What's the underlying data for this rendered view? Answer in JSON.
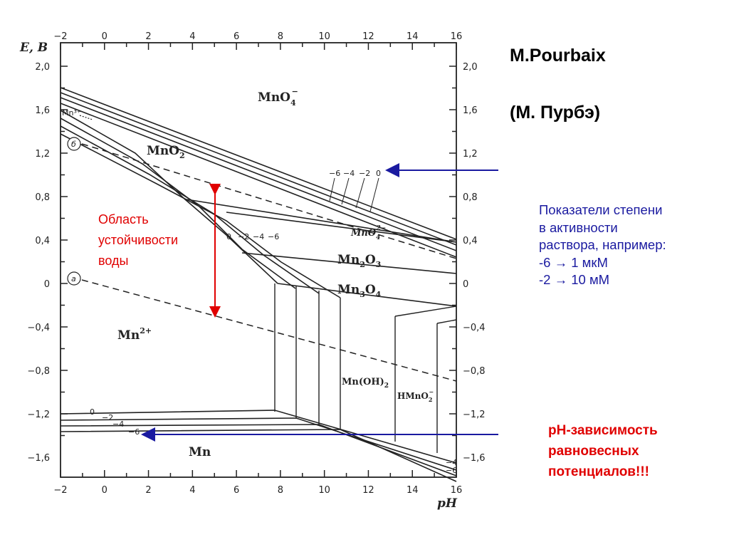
{
  "diagram": {
    "y_axis_title": "E, B",
    "x_axis_title": "pH",
    "x_ticks": [
      "−2",
      "0",
      "2",
      "4",
      "6",
      "8",
      "10",
      "12",
      "14",
      "16"
    ],
    "y_ticks": [
      "2,0",
      "1,6",
      "1,2",
      "0,8",
      "0,4",
      "0",
      "−0,4",
      "−0,8",
      "−1,2",
      "−1,6"
    ],
    "regions": {
      "mno4": "MnO",
      "mno4_sub": "4",
      "mno4_sup": "−",
      "mno2": "MnO",
      "mno2_sub": "2",
      "mno4_2": "MnO",
      "mno4_2_sub": "4",
      "mno4_2_sup": "2−",
      "mn2o3": "Mn",
      "mn2o3_sub1": "2",
      "mn2o3_mid": "O",
      "mn2o3_sub2": "3",
      "mn3o4": "Mn",
      "mn3o4_sub1": "3",
      "mn3o4_mid": "O",
      "mn3o4_sub2": "4",
      "mn2plus": "Mn",
      "mn2plus_sup": "2+",
      "mnoh2": "Mn(OH)",
      "mnoh2_sub": "2",
      "hmno2": "HMnO",
      "hmno2_sub": "2",
      "hmno2_sup": "−",
      "mn": "Mn",
      "mn3plus": "Mn³⁺"
    },
    "water_lines": {
      "a": "а",
      "b": "б"
    },
    "activity_labels": {
      "top": [
        "−6",
        "−4",
        "−2",
        "0"
      ],
      "mid": [
        "0",
        "−2",
        "−4",
        "−6"
      ],
      "bottom": [
        "0",
        "−2",
        "−4",
        "−6"
      ],
      "right": [
        "−4",
        "−6"
      ]
    },
    "water_region_label": [
      "Область",
      "устойчивости",
      "воды"
    ],
    "colors": {
      "red": "#e00000",
      "blue": "#1a1aa0",
      "ink": "#222222"
    }
  },
  "title": "M.Pourbaix",
  "subtitle": "(М. Пурбэ)",
  "activity_note": [
    "Показатели степени",
    "в активности",
    "раствора, например:",
    "-6 → 1 мкМ",
    "-2 → 10 мМ"
  ],
  "ph_note": [
    "pH-зависимость",
    "равновесных",
    "потенциалов!!!"
  ]
}
